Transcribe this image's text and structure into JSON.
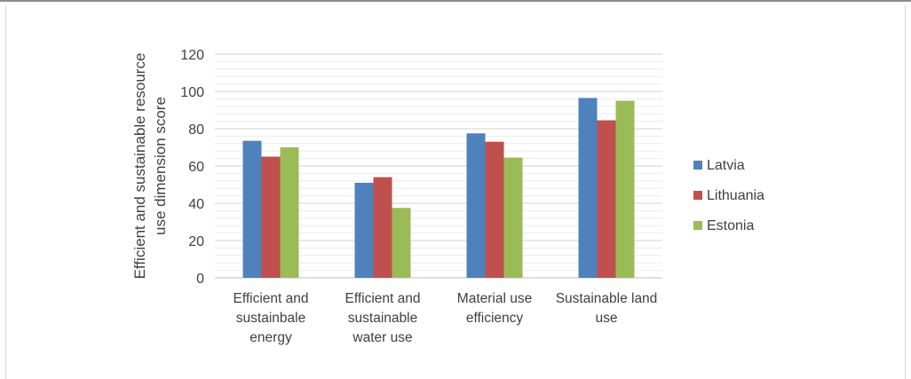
{
  "chart_data": {
    "type": "bar",
    "title": "",
    "xlabel": "",
    "ylabel": "Efficient and sustainable resource use dimension score",
    "ylabel_lines": [
      "Efficient and sustainable resource",
      "use dimension score"
    ],
    "ylim": [
      0,
      120
    ],
    "yticks": [
      0,
      20,
      40,
      60,
      80,
      100,
      120
    ],
    "minor_grid_step": 4,
    "grid": true,
    "legend_position": "right",
    "categories": [
      "Efficient and sustainbale energy",
      "Efficient and sustainable water use",
      "Material use efficiency",
      "Sustainable land use"
    ],
    "category_lines": [
      [
        "Efficient and",
        "sustainbale",
        "energy"
      ],
      [
        "Efficient and",
        "sustainable",
        "water use"
      ],
      [
        "Material use",
        "efficiency"
      ],
      [
        "Sustainable land",
        "use"
      ]
    ],
    "series": [
      {
        "name": "Latvia",
        "color": "#4f81bd",
        "values": [
          73.5,
          51,
          77.5,
          96.5
        ]
      },
      {
        "name": "Lithuania",
        "color": "#c0504d",
        "values": [
          65,
          54,
          73,
          84.5
        ]
      },
      {
        "name": "Estonia",
        "color": "#9bbb59",
        "values": [
          70,
          37.5,
          64.5,
          95
        ]
      }
    ]
  }
}
